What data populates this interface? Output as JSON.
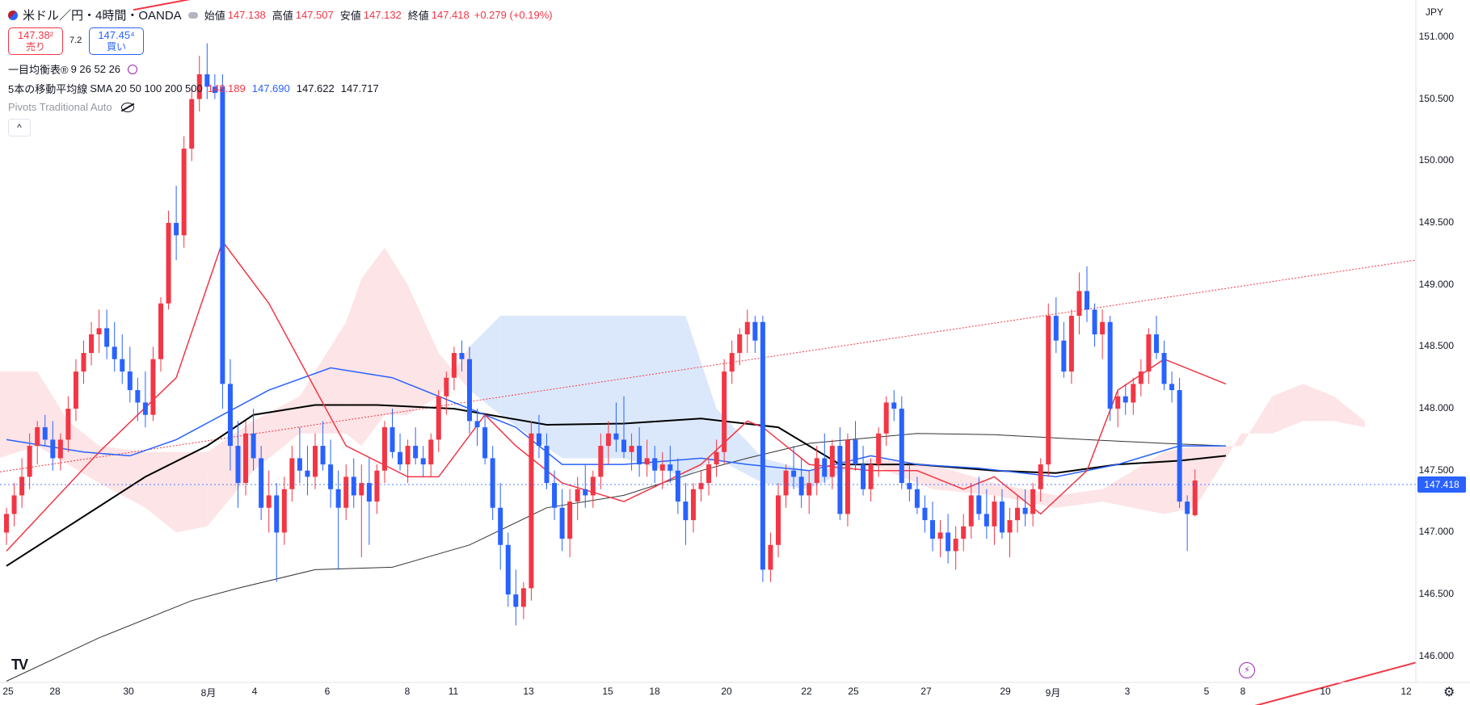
{
  "header": {
    "title": "米ドル／円・4時間・OANDA",
    "open_label": "始値",
    "open": "147.138",
    "high_label": "高値",
    "high": "147.507",
    "low_label": "安値",
    "low": "147.132",
    "close_label": "終値",
    "close": "147.418",
    "change": "+0.279 (+0.19%)"
  },
  "trade": {
    "sell_price": "147.38²",
    "sell_label": "売り",
    "spread": "7.2",
    "buy_price": "147.45⁴",
    "buy_label": "買い"
  },
  "indicators": {
    "ichimoku": {
      "name": "一目均衡表®",
      "params": "9 26 52 26"
    },
    "sma": {
      "name": "5本の移動平均線",
      "params": "SMA 20 50 100 200 500",
      "v1": "148.189",
      "v2": "147.690",
      "v3": "147.622",
      "v4": "147.717"
    },
    "pivots": {
      "name": "Pivots Traditional Auto"
    }
  },
  "collapse_symbol": "^",
  "currency": "JPY",
  "last_price_tag": "147.418",
  "icons": {
    "symbol": "us-flag-icon",
    "minimize": "minus-icon",
    "hide": "eye-off-icon",
    "settings": "gear-icon",
    "alert": "lightning-icon",
    "logo": "tradingview-logo"
  },
  "colors": {
    "up": "#f23645",
    "down": "#2962ff",
    "sma20": "#f23645",
    "sma50": "#2962ff",
    "sma100": "#000000",
    "sma200": "#333333",
    "cloud_bull": "#fde4e6",
    "cloud_bear": "#dbe8fb"
  },
  "chart_data": {
    "type": "candlestick",
    "ylim": [
      145.79,
      151.3
    ],
    "y_ticks": [
      "151.000",
      "150.500",
      "150.000",
      "149.500",
      "149.000",
      "148.500",
      "148.000",
      "147.500",
      "147.000",
      "146.500",
      "146.000"
    ],
    "x_ticks": [
      "25",
      "28",
      "30",
      "8月",
      "4",
      "6",
      "8",
      "11",
      "13",
      "15",
      "18",
      "20",
      "22",
      "25",
      "27",
      "29",
      "9月",
      "3",
      "5",
      "8",
      "10",
      "12"
    ],
    "ohlc": [
      [
        147.0,
        147.2,
        146.9,
        147.15
      ],
      [
        147.15,
        147.4,
        147.05,
        147.3
      ],
      [
        147.3,
        147.6,
        147.2,
        147.45
      ],
      [
        147.45,
        147.8,
        147.35,
        147.7
      ],
      [
        147.7,
        147.9,
        147.55,
        147.85
      ],
      [
        147.85,
        147.95,
        147.7,
        147.75
      ],
      [
        147.75,
        147.9,
        147.5,
        147.6
      ],
      [
        147.6,
        147.8,
        147.5,
        147.75
      ],
      [
        147.75,
        148.1,
        147.65,
        148.0
      ],
      [
        148.0,
        148.4,
        147.9,
        148.3
      ],
      [
        148.3,
        148.55,
        148.2,
        148.45
      ],
      [
        148.45,
        148.7,
        148.35,
        148.6
      ],
      [
        148.6,
        148.8,
        148.45,
        148.65
      ],
      [
        148.65,
        148.8,
        148.4,
        148.5
      ],
      [
        148.5,
        148.7,
        148.3,
        148.4
      ],
      [
        148.4,
        148.6,
        148.2,
        148.3
      ],
      [
        148.3,
        148.5,
        148.05,
        148.15
      ],
      [
        148.15,
        148.25,
        147.9,
        148.05
      ],
      [
        148.05,
        148.3,
        147.85,
        147.95
      ],
      [
        147.95,
        148.5,
        147.9,
        148.4
      ],
      [
        148.4,
        148.9,
        148.3,
        148.85
      ],
      [
        148.85,
        149.6,
        148.8,
        149.5
      ],
      [
        149.5,
        149.8,
        149.2,
        149.4
      ],
      [
        149.4,
        150.2,
        149.3,
        150.1
      ],
      [
        150.1,
        150.6,
        150.0,
        150.5
      ],
      [
        150.5,
        150.85,
        150.4,
        150.7
      ],
      [
        150.7,
        150.95,
        150.5,
        150.6
      ],
      [
        150.6,
        150.7,
        150.5,
        150.55
      ],
      [
        150.6,
        150.7,
        148.0,
        148.2
      ],
      [
        148.2,
        148.4,
        147.5,
        147.7
      ],
      [
        147.7,
        147.9,
        147.2,
        147.4
      ],
      [
        147.4,
        147.9,
        147.3,
        147.8
      ],
      [
        147.8,
        148.0,
        147.5,
        147.6
      ],
      [
        147.6,
        147.7,
        147.1,
        147.2
      ],
      [
        147.2,
        147.5,
        147.0,
        147.3
      ],
      [
        147.3,
        147.4,
        146.6,
        147.0
      ],
      [
        147.0,
        147.45,
        146.9,
        147.35
      ],
      [
        147.35,
        147.7,
        147.25,
        147.6
      ],
      [
        147.6,
        147.85,
        147.4,
        147.5
      ],
      [
        147.5,
        147.7,
        147.3,
        147.45
      ],
      [
        147.45,
        147.8,
        147.35,
        147.7
      ],
      [
        147.7,
        147.9,
        147.5,
        147.55
      ],
      [
        147.55,
        147.75,
        147.2,
        147.35
      ],
      [
        147.35,
        147.5,
        146.7,
        147.2
      ],
      [
        147.2,
        147.55,
        147.1,
        147.45
      ],
      [
        147.45,
        147.6,
        147.2,
        147.3
      ],
      [
        147.3,
        147.55,
        146.8,
        147.4
      ],
      [
        147.4,
        147.6,
        146.9,
        147.25
      ],
      [
        147.25,
        147.55,
        147.15,
        147.5
      ],
      [
        147.5,
        147.9,
        147.4,
        147.85
      ],
      [
        147.85,
        148.0,
        147.6,
        147.65
      ],
      [
        147.65,
        147.8,
        147.5,
        147.55
      ],
      [
        147.55,
        147.75,
        147.4,
        147.7
      ],
      [
        147.7,
        147.85,
        147.55,
        147.6
      ],
      [
        147.6,
        147.7,
        147.45,
        147.55
      ],
      [
        147.55,
        147.8,
        147.45,
        147.75
      ],
      [
        147.75,
        148.15,
        147.65,
        148.1
      ],
      [
        148.1,
        148.3,
        147.95,
        148.25
      ],
      [
        148.25,
        148.5,
        148.15,
        148.45
      ],
      [
        148.45,
        148.55,
        148.3,
        148.4
      ],
      [
        148.4,
        148.5,
        147.8,
        147.9
      ],
      [
        147.9,
        148.0,
        147.7,
        147.85
      ],
      [
        147.85,
        147.95,
        147.55,
        147.6
      ],
      [
        147.6,
        147.7,
        147.1,
        147.2
      ],
      [
        147.2,
        147.4,
        146.7,
        146.9
      ],
      [
        146.9,
        147.0,
        146.4,
        146.5
      ],
      [
        146.5,
        146.7,
        146.25,
        146.4
      ],
      [
        146.4,
        146.6,
        146.3,
        146.55
      ],
      [
        146.55,
        147.9,
        146.45,
        147.8
      ],
      [
        147.8,
        147.95,
        147.6,
        147.7
      ],
      [
        147.7,
        147.8,
        147.35,
        147.4
      ],
      [
        147.4,
        147.5,
        147.1,
        147.2
      ],
      [
        147.2,
        147.35,
        146.85,
        146.95
      ],
      [
        146.95,
        147.35,
        146.8,
        147.25
      ],
      [
        147.25,
        147.45,
        147.1,
        147.35
      ],
      [
        147.35,
        147.55,
        147.2,
        147.3
      ],
      [
        147.3,
        147.5,
        147.2,
        147.45
      ],
      [
        147.45,
        147.8,
        147.35,
        147.7
      ],
      [
        147.7,
        147.9,
        147.55,
        147.8
      ],
      [
        147.8,
        148.05,
        147.65,
        147.75
      ],
      [
        147.75,
        148.1,
        147.6,
        147.65
      ],
      [
        147.65,
        147.8,
        147.5,
        147.7
      ],
      [
        147.7,
        147.85,
        147.45,
        147.55
      ],
      [
        147.55,
        147.75,
        147.45,
        147.6
      ],
      [
        147.6,
        147.7,
        147.4,
        147.5
      ],
      [
        147.5,
        147.65,
        147.35,
        147.55
      ],
      [
        147.55,
        147.7,
        147.4,
        147.5
      ],
      [
        147.5,
        147.6,
        147.15,
        147.25
      ],
      [
        147.25,
        147.4,
        146.9,
        147.1
      ],
      [
        147.1,
        147.4,
        147.0,
        147.35
      ],
      [
        147.35,
        147.5,
        147.25,
        147.4
      ],
      [
        147.4,
        147.6,
        147.3,
        147.55
      ],
      [
        147.55,
        147.75,
        147.45,
        147.65
      ],
      [
        147.65,
        148.4,
        147.55,
        148.3
      ],
      [
        148.3,
        148.55,
        148.2,
        148.45
      ],
      [
        148.45,
        148.65,
        148.35,
        148.6
      ],
      [
        148.6,
        148.8,
        148.45,
        148.7
      ],
      [
        148.7,
        148.75,
        148.45,
        148.55
      ],
      [
        148.7,
        148.75,
        146.6,
        146.7
      ],
      [
        146.7,
        147.0,
        146.6,
        146.9
      ],
      [
        146.9,
        147.4,
        146.8,
        147.3
      ],
      [
        147.3,
        147.55,
        147.2,
        147.5
      ],
      [
        147.5,
        147.7,
        147.35,
        147.45
      ],
      [
        147.45,
        147.6,
        147.2,
        147.3
      ],
      [
        147.3,
        147.5,
        147.15,
        147.4
      ],
      [
        147.4,
        147.7,
        147.3,
        147.6
      ],
      [
        147.6,
        147.8,
        147.4,
        147.45
      ],
      [
        147.45,
        147.75,
        147.35,
        147.7
      ],
      [
        147.7,
        147.85,
        147.1,
        147.15
      ],
      [
        147.15,
        147.8,
        147.05,
        147.75
      ],
      [
        147.75,
        147.9,
        147.5,
        147.55
      ],
      [
        147.55,
        147.7,
        147.3,
        147.35
      ],
      [
        147.35,
        147.6,
        147.25,
        147.55
      ],
      [
        147.55,
        147.85,
        147.45,
        147.8
      ],
      [
        147.8,
        148.1,
        147.7,
        148.05
      ],
      [
        148.05,
        148.15,
        147.9,
        148.0
      ],
      [
        148.0,
        148.1,
        147.35,
        147.4
      ],
      [
        147.4,
        147.55,
        147.25,
        147.35
      ],
      [
        147.35,
        147.45,
        147.15,
        147.2
      ],
      [
        147.2,
        147.3,
        147.0,
        147.1
      ],
      [
        147.1,
        147.25,
        146.85,
        146.95
      ],
      [
        146.95,
        147.1,
        146.8,
        147.0
      ],
      [
        147.0,
        147.15,
        146.75,
        146.85
      ],
      [
        146.85,
        147.05,
        146.7,
        146.95
      ],
      [
        146.95,
        147.15,
        146.85,
        147.05
      ],
      [
        147.05,
        147.4,
        146.95,
        147.3
      ],
      [
        147.3,
        147.45,
        147.1,
        147.15
      ],
      [
        147.15,
        147.35,
        146.95,
        147.05
      ],
      [
        147.05,
        147.3,
        146.9,
        147.25
      ],
      [
        147.25,
        147.35,
        146.95,
        147.0
      ],
      [
        147.0,
        147.2,
        146.8,
        147.1
      ],
      [
        147.1,
        147.3,
        147.0,
        147.2
      ],
      [
        147.2,
        147.35,
        147.05,
        147.15
      ],
      [
        147.15,
        147.4,
        147.05,
        147.35
      ],
      [
        147.35,
        147.6,
        147.25,
        147.55
      ],
      [
        147.55,
        148.85,
        147.45,
        148.75
      ],
      [
        148.75,
        148.9,
        148.45,
        148.55
      ],
      [
        148.55,
        148.7,
        148.25,
        148.3
      ],
      [
        148.3,
        148.8,
        148.2,
        148.75
      ],
      [
        148.75,
        149.1,
        148.6,
        148.95
      ],
      [
        148.95,
        149.15,
        148.7,
        148.8
      ],
      [
        148.8,
        148.85,
        148.5,
        148.6
      ],
      [
        148.6,
        148.8,
        148.4,
        148.7
      ],
      [
        148.7,
        148.75,
        147.9,
        148.0
      ],
      [
        148.0,
        148.15,
        147.85,
        148.1
      ],
      [
        148.1,
        148.2,
        147.95,
        148.05
      ],
      [
        148.05,
        148.25,
        147.95,
        148.2
      ],
      [
        148.2,
        148.4,
        148.1,
        148.3
      ],
      [
        148.3,
        148.65,
        148.2,
        148.6
      ],
      [
        148.6,
        148.75,
        148.4,
        148.45
      ],
      [
        148.45,
        148.55,
        148.15,
        148.2
      ],
      [
        148.2,
        148.3,
        148.05,
        148.15
      ],
      [
        148.15,
        148.25,
        147.2,
        147.25
      ],
      [
        147.25,
        147.3,
        146.85,
        147.15
      ],
      [
        147.14,
        147.51,
        147.13,
        147.42
      ]
    ],
    "sma20": [
      [
        0,
        146.85
      ],
      [
        12,
        147.65
      ],
      [
        22,
        148.25
      ],
      [
        28,
        149.35
      ],
      [
        34,
        148.85
      ],
      [
        44,
        147.7
      ],
      [
        52,
        147.45
      ],
      [
        56,
        147.45
      ],
      [
        62,
        147.95
      ],
      [
        66,
        147.7
      ],
      [
        72,
        147.4
      ],
      [
        80,
        147.25
      ],
      [
        90,
        147.55
      ],
      [
        96,
        147.9
      ],
      [
        98,
        147.85
      ],
      [
        104,
        147.55
      ],
      [
        112,
        147.5
      ],
      [
        118,
        147.5
      ],
      [
        124,
        147.35
      ],
      [
        128,
        147.45
      ],
      [
        134,
        147.15
      ],
      [
        140,
        147.5
      ],
      [
        144,
        148.15
      ],
      [
        150,
        148.4
      ],
      [
        158,
        148.2
      ]
    ],
    "sma50": [
      [
        0,
        147.75
      ],
      [
        10,
        147.65
      ],
      [
        16,
        147.62
      ],
      [
        22,
        147.75
      ],
      [
        28,
        147.95
      ],
      [
        34,
        148.15
      ],
      [
        42,
        148.33
      ],
      [
        50,
        148.25
      ],
      [
        58,
        148.05
      ],
      [
        66,
        147.85
      ],
      [
        72,
        147.55
      ],
      [
        80,
        147.55
      ],
      [
        90,
        147.6
      ],
      [
        96,
        147.55
      ],
      [
        104,
        147.5
      ],
      [
        112,
        147.62
      ],
      [
        118,
        147.55
      ],
      [
        126,
        147.52
      ],
      [
        136,
        147.45
      ],
      [
        144,
        147.55
      ],
      [
        152,
        147.7
      ],
      [
        158,
        147.7
      ]
    ],
    "sma100": [
      [
        0,
        146.73
      ],
      [
        8,
        147.05
      ],
      [
        18,
        147.45
      ],
      [
        26,
        147.7
      ],
      [
        32,
        147.95
      ],
      [
        40,
        148.03
      ],
      [
        48,
        148.03
      ],
      [
        58,
        148.0
      ],
      [
        70,
        147.87
      ],
      [
        80,
        147.88
      ],
      [
        90,
        147.92
      ],
      [
        100,
        147.85
      ],
      [
        108,
        147.55
      ],
      [
        118,
        147.55
      ],
      [
        128,
        147.5
      ],
      [
        136,
        147.48
      ],
      [
        144,
        147.55
      ],
      [
        152,
        147.58
      ],
      [
        158,
        147.62
      ]
    ],
    "sma200": [
      [
        0,
        145.8
      ],
      [
        12,
        146.15
      ],
      [
        24,
        146.45
      ],
      [
        30,
        146.55
      ],
      [
        40,
        146.7
      ],
      [
        50,
        146.72
      ],
      [
        60,
        146.9
      ],
      [
        70,
        147.2
      ],
      [
        80,
        147.3
      ],
      [
        90,
        147.5
      ],
      [
        96,
        147.6
      ],
      [
        104,
        147.72
      ],
      [
        118,
        147.8
      ],
      [
        128,
        147.79
      ],
      [
        140,
        147.75
      ],
      [
        150,
        147.72
      ],
      [
        158,
        147.7
      ]
    ],
    "cloud": [
      [
        -1,
        148.3,
        147.6
      ],
      [
        4,
        148.3,
        147.7
      ],
      [
        8,
        147.9,
        147.55
      ],
      [
        12,
        147.7,
        147.4
      ],
      [
        18,
        147.65,
        147.2
      ],
      [
        22,
        147.65,
        147.0
      ],
      [
        26,
        147.65,
        147.05
      ],
      [
        32,
        147.9,
        147.5
      ],
      [
        38,
        148.1,
        147.8
      ],
      [
        44,
        148.7,
        147.8
      ],
      [
        46,
        149.05,
        147.7
      ],
      [
        49,
        149.3,
        147.95
      ],
      [
        52,
        149.0,
        147.95
      ],
      [
        56,
        148.45,
        148.1
      ],
      [
        60,
        148.15,
        148.5
      ],
      [
        64,
        147.95,
        148.75
      ],
      [
        72,
        147.6,
        148.75
      ],
      [
        80,
        147.6,
        148.75
      ],
      [
        88,
        147.45,
        148.75
      ],
      [
        92,
        147.6,
        148.0
      ],
      [
        98,
        147.4,
        147.6
      ],
      [
        104,
        147.35,
        147.5
      ],
      [
        112,
        147.6,
        147.55
      ],
      [
        120,
        147.55,
        147.35
      ],
      [
        128,
        147.4,
        147.3
      ],
      [
        136,
        147.3,
        147.2
      ],
      [
        142,
        147.35,
        147.25
      ],
      [
        150,
        147.65,
        147.15
      ],
      [
        154,
        147.7,
        147.2
      ],
      [
        160,
        147.7,
        147.8
      ],
      [
        164,
        148.1,
        147.8
      ],
      [
        168,
        148.2,
        147.9
      ],
      [
        172,
        148.1,
        147.9
      ],
      [
        176,
        147.9,
        147.85
      ]
    ]
  }
}
